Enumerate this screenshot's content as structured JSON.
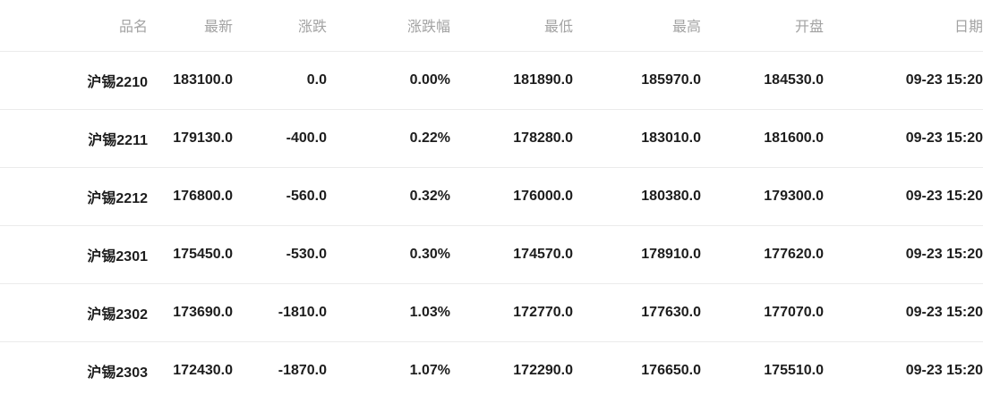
{
  "colors": {
    "background": "#ffffff",
    "header_text": "#a3a3a3",
    "body_text": "#1d1d1d",
    "down_green": "#47b284",
    "divider": "#ebebeb"
  },
  "table": {
    "columns": [
      {
        "key": "name",
        "label": "品名"
      },
      {
        "key": "latest",
        "label": "最新"
      },
      {
        "key": "change",
        "label": "涨跌"
      },
      {
        "key": "pct",
        "label": "涨跌幅"
      },
      {
        "key": "low",
        "label": "最低"
      },
      {
        "key": "high",
        "label": "最高"
      },
      {
        "key": "open",
        "label": "开盘"
      },
      {
        "key": "date",
        "label": "日期"
      }
    ],
    "rows": [
      {
        "name": "沪锡2210",
        "latest": "183100.0",
        "change": "0.0",
        "pct": "0.00%",
        "low": "181890.0",
        "high": "185970.0",
        "open": "184530.0",
        "date": "09-23 15:20"
      },
      {
        "name": "沪锡2211",
        "latest": "179130.0",
        "change": "-400.0",
        "pct": "0.22%",
        "low": "178280.0",
        "high": "183010.0",
        "open": "181600.0",
        "date": "09-23 15:20"
      },
      {
        "name": "沪锡2212",
        "latest": "176800.0",
        "change": "-560.0",
        "pct": "0.32%",
        "low": "176000.0",
        "high": "180380.0",
        "open": "179300.0",
        "date": "09-23 15:20"
      },
      {
        "name": "沪锡2301",
        "latest": "175450.0",
        "change": "-530.0",
        "pct": "0.30%",
        "low": "174570.0",
        "high": "178910.0",
        "open": "177620.0",
        "date": "09-23 15:20"
      },
      {
        "name": "沪锡2302",
        "latest": "173690.0",
        "change": "-1810.0",
        "pct": "1.03%",
        "low": "172770.0",
        "high": "177630.0",
        "open": "177070.0",
        "date": "09-23 15:20"
      },
      {
        "name": "沪锡2303",
        "latest": "172430.0",
        "change": "-1870.0",
        "pct": "1.07%",
        "low": "172290.0",
        "high": "176650.0",
        "open": "175510.0",
        "date": "09-23 15:20"
      }
    ]
  }
}
